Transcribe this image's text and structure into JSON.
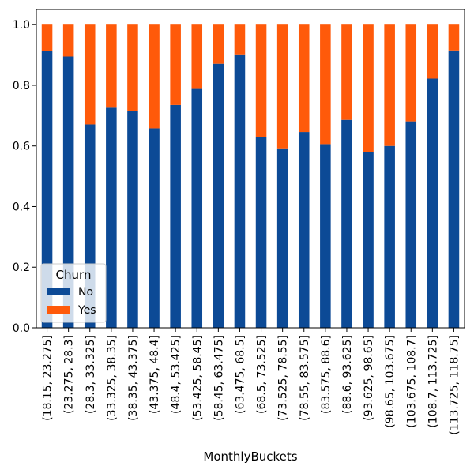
{
  "chart_data": {
    "type": "bar",
    "stacked": true,
    "title": "",
    "xlabel": "MonthlyBuckets",
    "ylabel": "",
    "ylim": [
      0,
      1.05
    ],
    "yticks": [
      0.0,
      0.2,
      0.4,
      0.6,
      0.8,
      1.0
    ],
    "ytick_labels": [
      "0.0",
      "0.2",
      "0.4",
      "0.6",
      "0.8",
      "1.0"
    ],
    "categories": [
      "(18.15, 23.275]",
      "(23.275, 28.3]",
      "(28.3, 33.325]",
      "(33.325, 38.35]",
      "(38.35, 43.375]",
      "(43.375, 48.4]",
      "(48.4, 53.425]",
      "(53.425, 58.45]",
      "(58.45, 63.475]",
      "(63.475, 68.5]",
      "(68.5, 73.525]",
      "(73.525, 78.55]",
      "(78.55, 83.575]",
      "(83.575, 88.6]",
      "(88.6, 93.625]",
      "(93.625, 98.65]",
      "(98.65, 103.675]",
      "(103.675, 108.7]",
      "(108.7, 113.725]",
      "(113.725, 118.75]"
    ],
    "series": [
      {
        "name": "No",
        "color": "#0c4a96",
        "values": [
          0.912,
          0.895,
          0.671,
          0.726,
          0.716,
          0.658,
          0.735,
          0.788,
          0.871,
          0.902,
          0.628,
          0.592,
          0.646,
          0.606,
          0.686,
          0.579,
          0.6,
          0.681,
          0.822,
          0.915
        ]
      },
      {
        "name": "Yes",
        "color": "#ff5a0a",
        "values": [
          0.088,
          0.105,
          0.329,
          0.274,
          0.284,
          0.342,
          0.265,
          0.212,
          0.129,
          0.098,
          0.372,
          0.408,
          0.354,
          0.394,
          0.314,
          0.421,
          0.4,
          0.319,
          0.178,
          0.085
        ]
      }
    ],
    "legend": {
      "title": "Churn",
      "position": "lower-left"
    },
    "grid": false
  }
}
